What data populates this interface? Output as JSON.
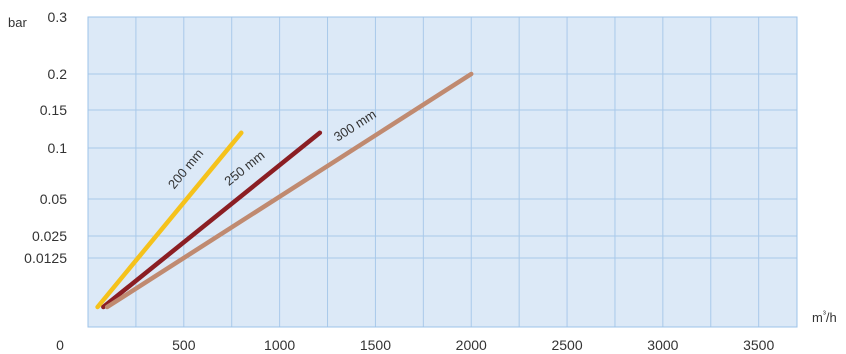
{
  "chart_data": {
    "type": "line",
    "xlabel": "m³/h",
    "ylabel": "bar",
    "xlim": [
      0,
      3700
    ],
    "x_ticks": [
      "0",
      "500",
      "1000",
      "1500",
      "2000",
      "2500",
      "3000",
      "3500"
    ],
    "y_ticks": [
      "0.3",
      "0.2",
      "0.15",
      "0.1",
      "0.05",
      "0.025",
      "0.0125"
    ],
    "grid": true,
    "colors": {
      "plot_background": "#dce9f7",
      "grid": "#a9c9ea",
      "border": "#9dc3e8"
    },
    "series": [
      {
        "name": "200 mm",
        "color": "#f5c21b",
        "x": [
          50,
          800
        ],
        "y": [
          0.009,
          0.12
        ]
      },
      {
        "name": "250 mm",
        "color": "#8b1e23",
        "x": [
          80,
          1210
        ],
        "y": [
          0.009,
          0.12
        ]
      },
      {
        "name": "300 mm",
        "color": "#c08a70",
        "x": [
          100,
          2000
        ],
        "y": [
          0.009,
          0.2
        ]
      }
    ]
  }
}
